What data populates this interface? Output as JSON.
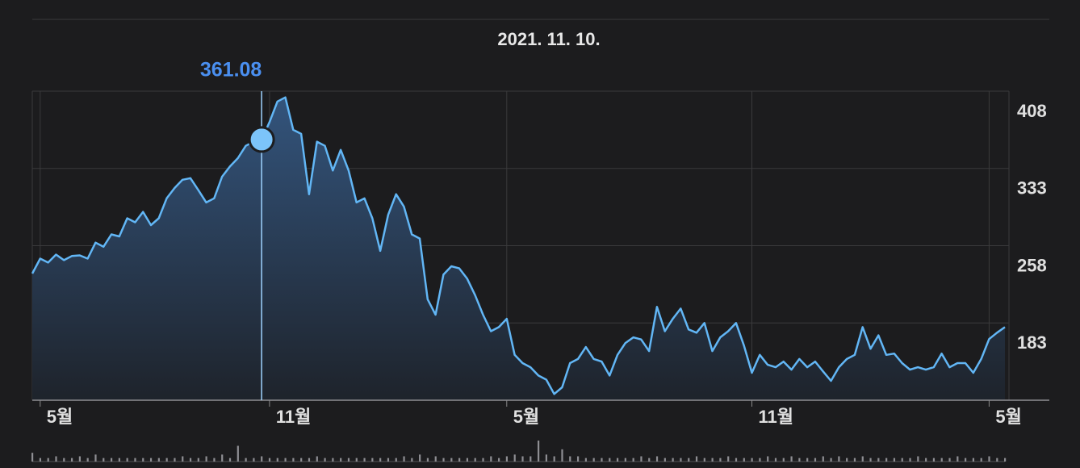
{
  "chart_data": {
    "type": "line",
    "cursor": {
      "date": "2021. 11. 10.",
      "index": 29
    },
    "color": "#62b6f5",
    "categories": [
      null,
      "5월",
      null,
      null,
      null,
      null,
      null,
      null,
      null,
      null,
      null,
      null,
      null,
      null,
      null,
      null,
      null,
      null,
      null,
      null,
      null,
      null,
      null,
      null,
      null,
      null,
      null,
      null,
      null,
      null,
      "11월",
      null,
      null,
      null,
      null,
      null,
      null,
      null,
      null,
      null,
      null,
      null,
      null,
      null,
      null,
      null,
      null,
      null,
      null,
      null,
      null,
      null,
      null,
      null,
      null,
      null,
      null,
      null,
      null,
      null,
      "5월",
      null,
      null,
      null,
      null,
      null,
      null,
      null,
      null,
      null,
      null,
      null,
      null,
      null,
      null,
      null,
      null,
      null,
      null,
      null,
      null,
      null,
      null,
      null,
      null,
      null,
      null,
      null,
      null,
      null,
      null,
      "11월",
      null,
      null,
      null,
      null,
      null,
      null,
      null,
      null,
      null,
      null,
      null,
      null,
      null,
      null,
      null,
      null,
      null,
      null,
      null,
      null,
      null,
      null,
      null,
      null,
      null,
      null,
      null,
      null,
      null,
      "5월",
      null,
      null
    ],
    "values": [
      231,
      245.5,
      241.6,
      249.4,
      244,
      248,
      248.6,
      245.5,
      261,
      257,
      269,
      267,
      284.6,
      280.7,
      290.8,
      278,
      284.6,
      304,
      314,
      322,
      323.6,
      312,
      300,
      304,
      325,
      335,
      343,
      355,
      359,
      361.08,
      378,
      398,
      402,
      370.5,
      366.6,
      308,
      359,
      355,
      331,
      351,
      331,
      300,
      304,
      284.6,
      253,
      288,
      308,
      296,
      269,
      265,
      206,
      191,
      230,
      238,
      236,
      226,
      210,
      191,
      175,
      179,
      187,
      152,
      144,
      140,
      132,
      128,
      114,
      120.5,
      144,
      148,
      159.6,
      148,
      145.5,
      132,
      152,
      163.5,
      169,
      167,
      155.7,
      198.6,
      175,
      187,
      197,
      176.7,
      173.6,
      183,
      155.7,
      169,
      175,
      183,
      161,
      134.6,
      152,
      142.4,
      140,
      145.5,
      137.7,
      148,
      140,
      145.5,
      136,
      126.8,
      140,
      148,
      152,
      179,
      158,
      171,
      152,
      153.3,
      144,
      137.7,
      140,
      137.7,
      140,
      153.3,
      140,
      144,
      144,
      134.6,
      148,
      167.4,
      173.6,
      179
    ],
    "volume": [
      5,
      2,
      2,
      3,
      2,
      2,
      3,
      2,
      4,
      2,
      2,
      2,
      2,
      2,
      2,
      2,
      2,
      2,
      2,
      3,
      2,
      2,
      3,
      2,
      4,
      2,
      9,
      2,
      2,
      3,
      2,
      2,
      2,
      2,
      2,
      2,
      3,
      2,
      2,
      2,
      2,
      2,
      2,
      2,
      2,
      2,
      2,
      3,
      2,
      4,
      2,
      3,
      2,
      2,
      2,
      2,
      2,
      2,
      3,
      2,
      3,
      4,
      3,
      3,
      12,
      4,
      3,
      7,
      3,
      3,
      2,
      2,
      2,
      2,
      2,
      2,
      2,
      3,
      2,
      3,
      2,
      2,
      2,
      2,
      3,
      2,
      2,
      2,
      3,
      2,
      2,
      2,
      2,
      3,
      2,
      2,
      3,
      2,
      2,
      2,
      3,
      2,
      3,
      2,
      2,
      3,
      2,
      2,
      2,
      2,
      2,
      2,
      3,
      2,
      2,
      2,
      2,
      3,
      2,
      2,
      2,
      3,
      2,
      2
    ],
    "ylim": [
      108,
      408
    ],
    "yticks": [
      183,
      258,
      333,
      408
    ],
    "grid": true
  }
}
